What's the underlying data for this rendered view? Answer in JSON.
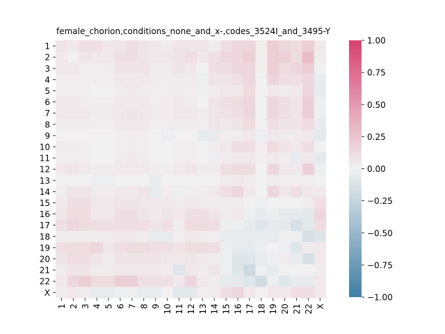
{
  "chart_data": {
    "type": "heatmap",
    "title": "female_chorion,conditions_none_and_x-,codes_3524I_and_3495-Y",
    "xlabel": "",
    "ylabel": "",
    "rows": [
      "1",
      "2",
      "3",
      "4",
      "5",
      "6",
      "7",
      "8",
      "9",
      "10",
      "11",
      "12",
      "13",
      "14",
      "15",
      "16",
      "17",
      "18",
      "19",
      "20",
      "21",
      "22",
      "X"
    ],
    "cols": [
      "1",
      "2",
      "3",
      "4",
      "5",
      "6",
      "7",
      "8",
      "9",
      "10",
      "11",
      "12",
      "13",
      "14",
      "15",
      "16",
      "17",
      "18",
      "19",
      "20",
      "21",
      "22",
      "X"
    ],
    "zlim": [
      -1.0,
      1.0
    ],
    "colorbar_ticks": [
      "1.00",
      "0.75",
      "0.50",
      "0.25",
      "0.00",
      "−0.25",
      "−0.50",
      "−0.75",
      "−1.00"
    ],
    "colorbar_tick_values": [
      1.0,
      0.75,
      0.5,
      0.25,
      0.0,
      -0.25,
      -0.5,
      -0.75,
      -1.0
    ],
    "colormap": {
      "negative": "#3f7ea5",
      "zero": "#f1f1f1",
      "positive": "#d8406f"
    },
    "values": [
      [
        0.07,
        0.05,
        0.1,
        0.1,
        0.05,
        0.07,
        0.1,
        0.08,
        0.05,
        0.03,
        0.07,
        0.07,
        0.07,
        0.03,
        0.1,
        0.15,
        0.15,
        0.02,
        0.2,
        0.15,
        0.12,
        0.2,
        0.05
      ],
      [
        0.05,
        0.0,
        0.07,
        0.05,
        0.05,
        0.1,
        0.1,
        0.08,
        0.05,
        0.05,
        0.07,
        0.1,
        0.05,
        0.1,
        0.15,
        0.15,
        0.2,
        0.02,
        0.2,
        0.18,
        0.12,
        0.3,
        0.03
      ],
      [
        0.05,
        0.05,
        0.02,
        0.02,
        0.03,
        0.07,
        0.07,
        0.08,
        0.03,
        0.03,
        0.07,
        0.05,
        0.0,
        0.1,
        0.1,
        0.15,
        0.15,
        0.02,
        0.2,
        0.12,
        0.15,
        0.2,
        0.0
      ],
      [
        0.02,
        0.02,
        0.02,
        0.02,
        0.02,
        0.05,
        0.05,
        0.05,
        0.03,
        0.02,
        0.03,
        0.03,
        -0.02,
        0.07,
        0.07,
        0.1,
        0.15,
        0.0,
        0.15,
        0.1,
        0.1,
        0.15,
        -0.05
      ],
      [
        0.02,
        0.02,
        0.02,
        0.0,
        0.0,
        0.03,
        0.05,
        0.03,
        0.02,
        0.02,
        0.03,
        0.02,
        -0.02,
        0.03,
        0.05,
        0.05,
        0.12,
        0.0,
        0.05,
        0.03,
        0.05,
        0.15,
        -0.05
      ],
      [
        0.05,
        0.05,
        0.03,
        0.02,
        0.02,
        0.05,
        0.05,
        0.05,
        0.02,
        0.03,
        0.05,
        0.03,
        0.0,
        0.07,
        0.1,
        0.12,
        0.15,
        0.0,
        0.15,
        0.1,
        0.07,
        0.2,
        -0.03
      ],
      [
        0.05,
        0.05,
        0.05,
        0.03,
        0.03,
        0.05,
        0.07,
        0.05,
        0.03,
        0.03,
        0.05,
        0.05,
        0.03,
        0.07,
        0.08,
        0.1,
        0.15,
        0.0,
        0.15,
        0.1,
        0.07,
        0.2,
        -0.03
      ],
      [
        0.03,
        0.03,
        0.03,
        0.02,
        0.02,
        0.05,
        0.05,
        0.05,
        0.02,
        0.02,
        0.03,
        0.03,
        0.02,
        0.07,
        0.05,
        0.07,
        0.12,
        0.0,
        0.1,
        0.07,
        0.07,
        0.12,
        -0.05
      ],
      [
        0.0,
        0.0,
        0.0,
        0.0,
        0.0,
        0.02,
        0.02,
        0.02,
        0.0,
        -0.03,
        0.0,
        0.0,
        -0.05,
        -0.05,
        0.02,
        0.02,
        0.05,
        -0.03,
        0.05,
        0.03,
        0.03,
        0.05,
        -0.07
      ],
      [
        0.03,
        0.03,
        0.02,
        0.0,
        0.0,
        0.02,
        0.03,
        0.02,
        0.0,
        0.0,
        0.02,
        0.02,
        0.0,
        0.03,
        0.05,
        0.1,
        0.1,
        0.02,
        0.12,
        0.07,
        0.05,
        0.1,
        0.0
      ],
      [
        0.02,
        0.02,
        0.02,
        0.0,
        0.0,
        0.03,
        0.05,
        0.03,
        0.0,
        0.0,
        0.02,
        0.02,
        0.0,
        -0.03,
        0.03,
        0.05,
        0.05,
        0.02,
        0.05,
        0.03,
        -0.05,
        0.05,
        -0.07
      ],
      [
        0.05,
        0.07,
        0.05,
        0.03,
        0.03,
        0.05,
        0.05,
        0.05,
        0.02,
        0.02,
        0.05,
        0.07,
        0.03,
        0.03,
        0.1,
        0.12,
        0.12,
        0.0,
        0.15,
        0.05,
        0.05,
        0.2,
        -0.03
      ],
      [
        0.0,
        0.0,
        0.0,
        -0.03,
        -0.03,
        0.0,
        0.0,
        0.0,
        -0.05,
        0.0,
        0.0,
        0.0,
        0.0,
        0.0,
        0.03,
        0.05,
        0.03,
        0.0,
        0.03,
        0.02,
        0.02,
        0.02,
        0.0
      ],
      [
        0.03,
        0.07,
        0.07,
        0.03,
        0.03,
        0.05,
        0.05,
        0.07,
        -0.05,
        0.02,
        -0.02,
        0.03,
        0.02,
        0.05,
        0.1,
        0.15,
        0.05,
        0.0,
        0.15,
        0.05,
        0.1,
        0.05,
        0.05
      ],
      [
        0.05,
        0.1,
        0.1,
        0.05,
        0.05,
        0.07,
        0.07,
        0.05,
        0.05,
        0.05,
        0.03,
        0.05,
        0.03,
        0.03,
        0.03,
        0.03,
        0.0,
        -0.03,
        0.0,
        0.0,
        0.0,
        0.03,
        0.1
      ],
      [
        0.07,
        0.12,
        0.12,
        0.05,
        0.05,
        0.1,
        0.1,
        0.07,
        0.05,
        0.07,
        0.05,
        0.1,
        0.1,
        0.07,
        0.03,
        0.05,
        -0.03,
        -0.05,
        -0.03,
        -0.05,
        -0.05,
        -0.07,
        0.15
      ],
      [
        0.1,
        0.15,
        0.12,
        0.1,
        0.1,
        0.1,
        0.1,
        0.1,
        0.07,
        0.1,
        0.03,
        0.12,
        0.12,
        0.1,
        -0.02,
        -0.03,
        -0.05,
        -0.1,
        -0.05,
        -0.07,
        -0.15,
        -0.08,
        0.12
      ],
      [
        0.03,
        0.03,
        0.03,
        0.03,
        0.03,
        0.05,
        0.05,
        0.03,
        -0.05,
        -0.05,
        0.02,
        0.05,
        0.03,
        0.02,
        -0.05,
        -0.05,
        -0.05,
        -0.05,
        -0.05,
        -0.03,
        -0.03,
        -0.15,
        -0.1
      ],
      [
        0.1,
        0.12,
        0.12,
        0.15,
        0.07,
        0.1,
        0.12,
        0.12,
        0.1,
        0.1,
        0.07,
        0.12,
        0.12,
        0.1,
        -0.03,
        -0.05,
        -0.05,
        -0.03,
        0.0,
        -0.03,
        -0.1,
        0.03,
        0.05
      ],
      [
        0.07,
        0.1,
        0.1,
        0.07,
        0.03,
        0.07,
        0.07,
        0.07,
        0.07,
        0.05,
        0.05,
        0.07,
        0.05,
        0.03,
        -0.03,
        -0.1,
        -0.1,
        -0.05,
        -0.03,
        0.03,
        -0.05,
        -0.15,
        0.05
      ],
      [
        0.03,
        0.07,
        0.07,
        0.03,
        0.03,
        0.05,
        0.05,
        0.05,
        0.05,
        0.03,
        -0.1,
        0.05,
        0.03,
        0.07,
        -0.03,
        -0.1,
        -0.2,
        -0.03,
        -0.05,
        0.0,
        0.0,
        0.0,
        0.03
      ],
      [
        0.05,
        0.15,
        0.2,
        0.12,
        0.12,
        0.2,
        0.2,
        0.1,
        0.1,
        0.1,
        0.05,
        0.15,
        0.05,
        0.03,
        -0.05,
        -0.07,
        -0.1,
        -0.18,
        -0.03,
        -0.1,
        -0.05,
        -0.05,
        0.05
      ],
      [
        0.03,
        0.05,
        0.03,
        -0.05,
        -0.05,
        -0.03,
        -0.03,
        -0.05,
        -0.05,
        0.0,
        -0.08,
        -0.08,
        0.02,
        0.03,
        0.1,
        0.15,
        0.05,
        0.0,
        0.05,
        0.05,
        0.1,
        0.1,
        0.05
      ]
    ]
  }
}
